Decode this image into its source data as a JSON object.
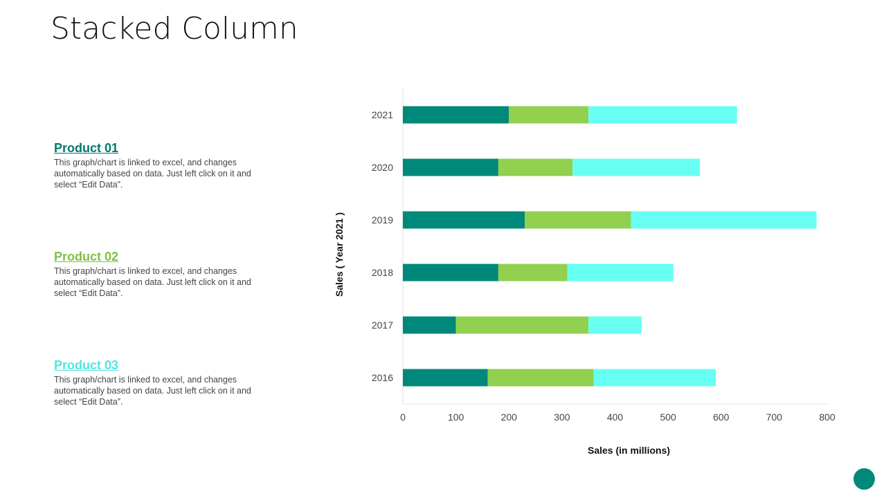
{
  "title": "Stacked Column",
  "products": [
    {
      "name": "Product 01",
      "desc": "This graph/chart is linked to excel, and changes automatically based on data. Just left click on it and select “Edit Data”.",
      "color": "#00897b"
    },
    {
      "name": "Product 02",
      "desc": "This graph/chart is linked to excel, and changes automatically based on data. Just left click on it and select “Edit Data”.",
      "color": "#92d050"
    },
    {
      "name": "Product 03",
      "desc": "This graph/chart is linked to excel, and changes automatically based on data. Just left click on it and select “Edit Data”.",
      "color": "#5ef5ea"
    }
  ],
  "chart_data": {
    "type": "bar",
    "orientation": "horizontal",
    "stacked": true,
    "categories": [
      "2016",
      "2017",
      "2018",
      "2019",
      "2020",
      "2021"
    ],
    "series": [
      {
        "name": "Product 01",
        "color": "#00897b",
        "values": [
          160,
          100,
          180,
          230,
          180,
          200
        ]
      },
      {
        "name": "Product 02",
        "color": "#92d050",
        "values": [
          200,
          250,
          130,
          200,
          140,
          150
        ]
      },
      {
        "name": "Product 03",
        "color": "#66fff2",
        "values": [
          230,
          100,
          200,
          350,
          240,
          280
        ]
      }
    ],
    "xlabel": "Sales (in millions)",
    "ylabel": "Sales ( Year 2021 )",
    "xlim": [
      0,
      800
    ],
    "xticks": [
      0,
      100,
      200,
      300,
      400,
      500,
      600,
      700,
      800
    ],
    "grid": false
  }
}
